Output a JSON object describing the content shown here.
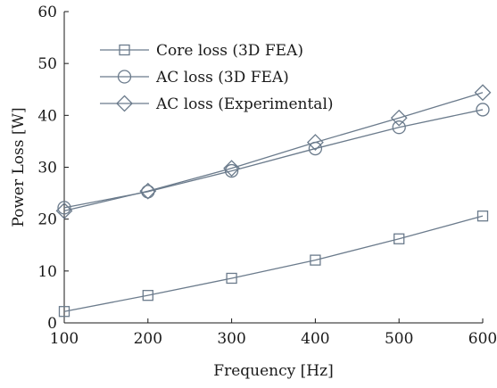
{
  "chart_data": {
    "type": "line",
    "xlabel": "Frequency [Hz]",
    "ylabel": "Power Loss [W]",
    "x": [
      100,
      200,
      300,
      400,
      500,
      600
    ],
    "xlim": [
      100,
      600
    ],
    "ylim": [
      0,
      60
    ],
    "xticks": [
      100,
      200,
      300,
      400,
      500,
      600
    ],
    "yticks": [
      0,
      10,
      20,
      30,
      40,
      50,
      60
    ],
    "grid": false,
    "legend_position": "top-left",
    "series": [
      {
        "name": "Core loss (3D FEA)",
        "marker": "square",
        "color": "#6b7b8c",
        "values": [
          2.2,
          5.3,
          8.6,
          12.1,
          16.2,
          20.6
        ]
      },
      {
        "name": "AC loss (3D FEA)",
        "marker": "circle",
        "color": "#6b7b8c",
        "values": [
          22.2,
          25.3,
          29.3,
          33.6,
          37.7,
          41.1
        ]
      },
      {
        "name": "AC loss (Experimental)",
        "marker": "diamond",
        "color": "#6b7b8c",
        "values": [
          21.6,
          25.4,
          29.8,
          34.8,
          39.5,
          44.4
        ]
      }
    ]
  }
}
